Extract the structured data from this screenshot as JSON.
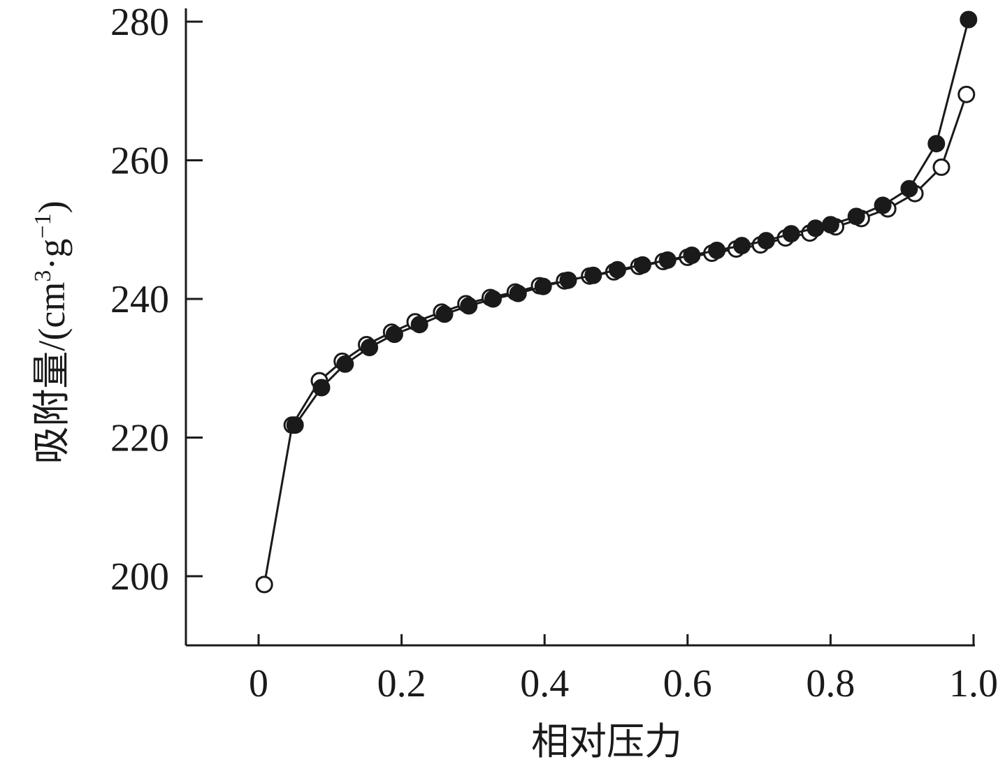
{
  "chart_data": {
    "type": "line",
    "title": "",
    "xlabel": "相对压力",
    "ylabel": {
      "prefix": "吸附量/(cm",
      "sup1": "3",
      "middle": "·g",
      "sup2": "−1",
      "suffix": ")"
    },
    "xlim": [
      -0.1,
      1.0
    ],
    "ylim": [
      190,
      280
    ],
    "x_ticks": [
      0,
      0.2,
      0.4,
      0.6,
      0.8,
      1.0
    ],
    "x_tick_labels": [
      "0",
      "0.2",
      "0.4",
      "0.6",
      "0.8",
      "1.0"
    ],
    "y_ticks": [
      200,
      220,
      240,
      260,
      280
    ],
    "y_tick_labels": [
      "200",
      "220",
      "240",
      "260",
      "280"
    ],
    "grid": false,
    "legend": "none",
    "series": [
      {
        "marker": "open-circle",
        "x": [
          0.008,
          0.047,
          0.085,
          0.117,
          0.151,
          0.186,
          0.219,
          0.256,
          0.29,
          0.324,
          0.359,
          0.393,
          0.428,
          0.463,
          0.497,
          0.532,
          0.566,
          0.6,
          0.634,
          0.668,
          0.702,
          0.737,
          0.771,
          0.807,
          0.843,
          0.88,
          0.918,
          0.955,
          0.99
        ],
        "y": [
          198.8,
          221.8,
          228.2,
          231.0,
          233.4,
          235.2,
          236.7,
          238.1,
          239.3,
          240.2,
          241.0,
          241.9,
          242.6,
          243.3,
          243.9,
          244.7,
          245.4,
          246.0,
          246.6,
          247.2,
          247.8,
          248.8,
          249.5,
          250.4,
          251.6,
          253.0,
          255.2,
          259.0,
          269.5
        ]
      },
      {
        "marker": "filled-circle",
        "x": [
          0.051,
          0.088,
          0.121,
          0.155,
          0.19,
          0.225,
          0.26,
          0.294,
          0.328,
          0.363,
          0.398,
          0.433,
          0.468,
          0.502,
          0.537,
          0.572,
          0.606,
          0.641,
          0.676,
          0.71,
          0.745,
          0.779,
          0.8,
          0.836,
          0.873,
          0.91,
          0.948,
          0.993
        ],
        "y": [
          221.8,
          227.2,
          230.6,
          233.0,
          234.9,
          236.3,
          237.8,
          239.0,
          240.0,
          240.8,
          241.8,
          242.7,
          243.4,
          244.2,
          244.9,
          245.6,
          246.3,
          247.0,
          247.7,
          248.4,
          249.4,
          250.2,
          250.7,
          251.9,
          253.5,
          255.9,
          262.4,
          280.3
        ]
      }
    ]
  }
}
